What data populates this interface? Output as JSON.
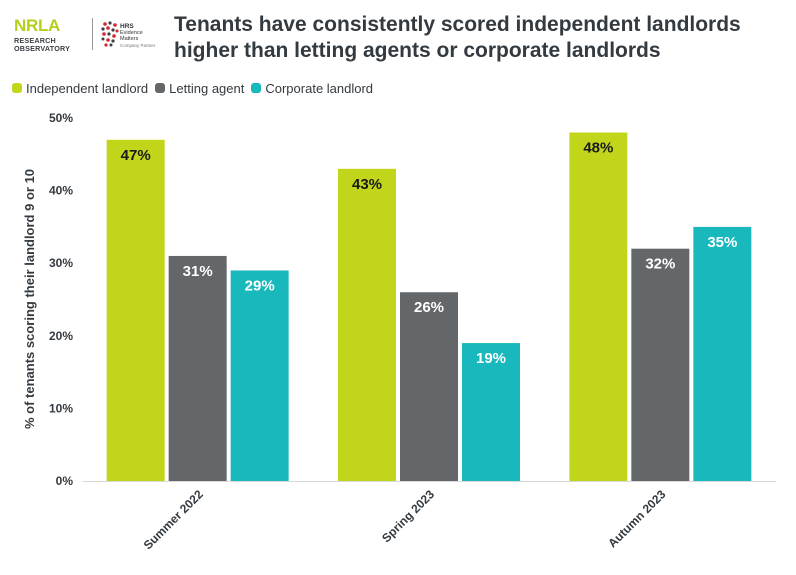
{
  "header": {
    "title": "Tenants have consistently scored independent landlords higher than letting agents or corporate landlords",
    "logo_nrla": {
      "mark": "NRLA",
      "sub1": "RESEARCH",
      "sub2": "OBSERVATORY"
    },
    "logo_hrs": {
      "mark": "HRS",
      "line1": "Evidence",
      "line2": "Matters",
      "tag": "Company Partner"
    }
  },
  "colors": {
    "independent": "#c1d61a",
    "letting": "#63676a",
    "corporate": "#19b8bd",
    "text": "#333a40"
  },
  "chart_data": {
    "type": "bar",
    "title": "Tenants have consistently scored independent landlords higher than letting agents or corporate landlords",
    "xlabel": "",
    "ylabel": "% of tenants scoring their landlord 9 or 10",
    "ylim": [
      0,
      50
    ],
    "yticks": [
      "0%",
      "10%",
      "20%",
      "30%",
      "40%",
      "50%"
    ],
    "categories": [
      "Summer 2022",
      "Spring 2023",
      "Autumn 2023"
    ],
    "series": [
      {
        "name": "Independent landlord",
        "values": [
          47,
          43,
          48
        ],
        "labels": [
          "47%",
          "43%",
          "48%"
        ],
        "color": "#c1d61a",
        "label_color": "#1a1a1a"
      },
      {
        "name": "Letting agent",
        "values": [
          31,
          26,
          32
        ],
        "labels": [
          "31%",
          "26%",
          "32%"
        ],
        "color": "#63676a",
        "label_color": "#ffffff"
      },
      {
        "name": "Corporate landlord",
        "values": [
          29,
          19,
          35
        ],
        "labels": [
          "29%",
          "19%",
          "35%"
        ],
        "color": "#19b8bd",
        "label_color": "#ffffff"
      }
    ],
    "grid": false,
    "legend_position": "top-left"
  }
}
